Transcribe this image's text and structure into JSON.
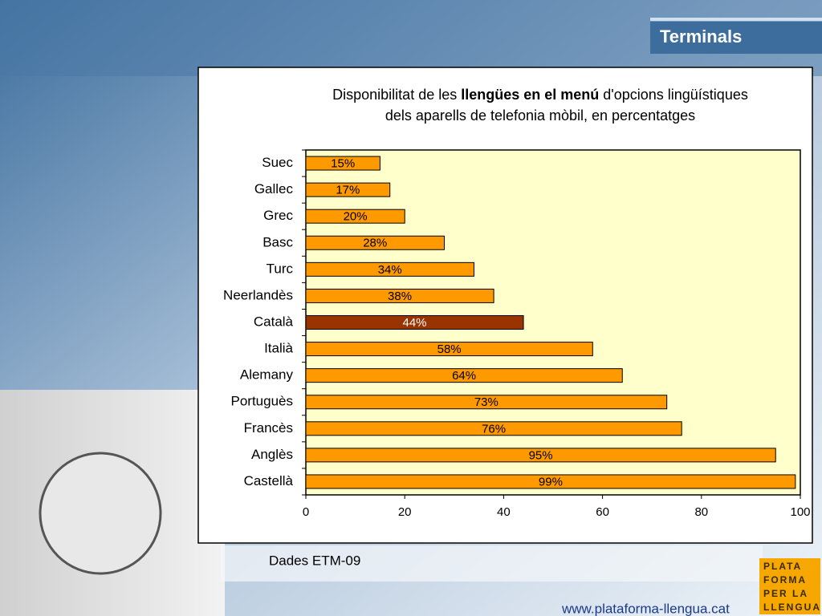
{
  "slide_title": "Terminals",
  "source": "Dades ETM-09",
  "url": "www.plataforma-llengua.cat",
  "logo": [
    "PLATA",
    "FORMA",
    "PER LA",
    "LLENGUA"
  ],
  "chart_data": {
    "type": "bar",
    "orientation": "horizontal",
    "title": [
      [
        "Disponibilitat de les ",
        "llengües en el menú",
        " d'opcions lingüístiques"
      ],
      [
        "dels aparells de telefonia mòbil, en percentatges"
      ]
    ],
    "categories": [
      "Suec",
      "Gallec",
      "Grec",
      "Basc",
      "Turc",
      "Neerlandès",
      "Català",
      "Italià",
      "Alemany",
      "Portuguès",
      "Francès",
      "Anglès",
      "Castellà"
    ],
    "values": [
      15,
      17,
      20,
      28,
      34,
      38,
      44,
      58,
      64,
      73,
      76,
      95,
      99
    ],
    "value_labels": [
      "15%",
      "17%",
      "20%",
      "28%",
      "34%",
      "38%",
      "44%",
      "58%",
      "64%",
      "73%",
      "76%",
      "95%",
      "99%"
    ],
    "colors": [
      "#ff9900",
      "#ff9900",
      "#ff9900",
      "#ff9900",
      "#ff9900",
      "#ff9900",
      "#993300",
      "#ff9900",
      "#ff9900",
      "#ff9900",
      "#ff9900",
      "#ff9900",
      "#ff9900"
    ],
    "xlim": [
      0,
      100
    ],
    "xticks": [
      0,
      20,
      40,
      60,
      80,
      100
    ],
    "plot_background": "#ffffcc"
  }
}
